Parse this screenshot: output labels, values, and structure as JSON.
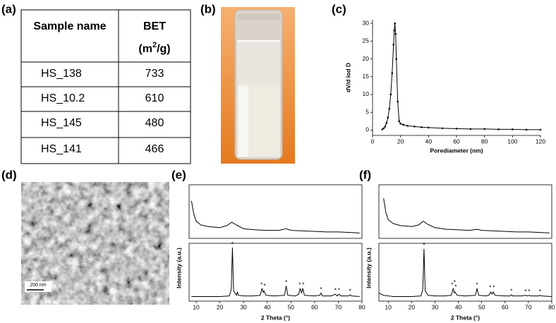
{
  "panel_labels": [
    "(a)",
    "(b)",
    "(c)",
    "(d)",
    "(e)",
    "(f)"
  ],
  "table": {
    "header": {
      "col1": "Sample name",
      "col2": {
        "name": "BET",
        "unit_open": "(m",
        "unit_sup": "2",
        "unit_close": "/g)"
      }
    },
    "rows": [
      [
        "HS_138",
        733
      ],
      [
        "HS_10.2",
        610
      ],
      [
        "HS_145",
        480
      ],
      [
        "HS_141",
        466
      ]
    ]
  },
  "image_d": {
    "scale_bar": "200 nm"
  },
  "chart_data": [
    {
      "type": "line",
      "markers": true,
      "color": "#000000",
      "x": [
        7,
        8,
        9,
        10,
        11,
        12,
        13,
        14,
        15,
        15.5,
        16,
        16.5,
        17,
        18,
        19,
        20,
        22,
        25,
        30,
        35,
        40,
        50,
        60,
        70,
        80,
        90,
        100,
        110,
        120
      ],
      "values": [
        0.2,
        0.5,
        1,
        2,
        3.5,
        6,
        10,
        16,
        24,
        28,
        30,
        27,
        20,
        8,
        2.5,
        1.8,
        1.5,
        1.2,
        1,
        0.8,
        0.7,
        0.5,
        0.4,
        0.3,
        0.3,
        0.2,
        0.2,
        0.1,
        0.1
      ],
      "xlim": [
        0,
        120
      ],
      "ylim": [
        -1.5,
        31
      ],
      "xticks": [
        0,
        20,
        40,
        60,
        80,
        100,
        120
      ],
      "yticks": [
        0,
        5,
        10,
        15,
        20,
        25,
        30
      ],
      "x_label": "Porediameter (nm)",
      "y_label": "dV/d lod D"
    },
    {
      "type": "line",
      "color": "#000000",
      "x": [
        8,
        9,
        10,
        12,
        15,
        20,
        23,
        25,
        27,
        30,
        35,
        40,
        45,
        48,
        50,
        55,
        60,
        65,
        70,
        75,
        79
      ],
      "values": [
        70,
        45,
        32,
        25,
        22,
        20,
        24,
        30,
        25,
        18,
        16,
        15,
        15,
        18,
        15,
        14,
        13,
        12,
        12,
        11,
        10
      ],
      "xlim": [
        7,
        80
      ],
      "ylim": [
        0,
        100
      ]
    },
    {
      "type": "line",
      "color": "#000000",
      "x": [
        8,
        12,
        16,
        20,
        24,
        24.8,
        25.3,
        25.8,
        27,
        27.4,
        27.8,
        30,
        34,
        37,
        37.8,
        38.3,
        38.6,
        39.5,
        43,
        47.3,
        48,
        48.7,
        52,
        53.3,
        53.9,
        54.5,
        55,
        55.7,
        60,
        62.2,
        62.7,
        63.3,
        67,
        68.8,
        69.5,
        70.3,
        71,
        74.4,
        75,
        75.6,
        79
      ],
      "values": [
        8,
        8,
        8,
        8,
        9,
        20,
        92,
        18,
        10,
        16,
        10,
        9,
        9,
        10,
        22,
        15,
        18,
        10,
        9,
        10,
        26,
        10,
        9,
        12,
        22,
        14,
        22,
        10,
        9,
        10,
        14,
        9,
        9,
        12,
        9,
        12,
        9,
        9,
        11,
        9,
        8
      ],
      "xlim": [
        7,
        80
      ],
      "ylim": [
        0,
        100
      ],
      "xticks": [
        10,
        20,
        30,
        40,
        50,
        60,
        70,
        80
      ],
      "x_label": "2 Theta (°)",
      "y_label": "Intensity (a.u.)",
      "annotations": [
        {
          "x": 25.3,
          "y": 98,
          "text": "*"
        },
        {
          "x": 37.6,
          "y": 28,
          "text": "*"
        },
        {
          "x": 38.9,
          "y": 26,
          "text": "*"
        },
        {
          "x": 48,
          "y": 32,
          "text": "*"
        },
        {
          "x": 53.7,
          "y": 28,
          "text": "*"
        },
        {
          "x": 55.2,
          "y": 28,
          "text": "*"
        },
        {
          "x": 62.7,
          "y": 20,
          "text": "*"
        },
        {
          "x": 68.8,
          "y": 18,
          "text": "*"
        },
        {
          "x": 70.3,
          "y": 18,
          "text": "*"
        },
        {
          "x": 75,
          "y": 17,
          "text": "*"
        }
      ]
    },
    {
      "type": "line",
      "color": "#000000",
      "x": [
        8,
        9,
        10,
        12,
        15,
        20,
        23,
        25,
        27,
        30,
        35,
        40,
        45,
        48,
        50,
        55,
        60,
        65,
        70,
        75,
        79
      ],
      "values": [
        75,
        48,
        35,
        28,
        24,
        22,
        25,
        32,
        26,
        20,
        17,
        16,
        15,
        17,
        15,
        14,
        13,
        12,
        12,
        11,
        10
      ],
      "xlim": [
        6,
        80
      ],
      "ylim": [
        0,
        100
      ]
    },
    {
      "type": "line",
      "color": "#000000",
      "x": [
        6,
        8,
        12,
        16,
        20,
        24,
        24.8,
        25.3,
        25.8,
        27,
        30,
        34,
        37,
        37.8,
        38.3,
        38.6,
        39.5,
        43,
        47.3,
        48,
        48.7,
        52,
        53.3,
        53.9,
        54.5,
        55,
        55.7,
        60,
        62.2,
        62.7,
        63.3,
        67,
        68.8,
        69.5,
        70.3,
        71,
        74.4,
        75,
        75.6,
        80
      ],
      "values": [
        14,
        10,
        8,
        8,
        8,
        9,
        20,
        90,
        18,
        10,
        9,
        9,
        10,
        22,
        14,
        16,
        10,
        9,
        10,
        22,
        10,
        9,
        11,
        16,
        12,
        16,
        10,
        9,
        9,
        11,
        9,
        9,
        10,
        9,
        10,
        9,
        9,
        10,
        9,
        8
      ],
      "xlim": [
        6,
        80
      ],
      "ylim": [
        0,
        100
      ],
      "xticks": [
        10,
        20,
        30,
        40,
        50,
        60,
        70,
        80
      ],
      "x_label": "2 Theta (°)",
      "y_label": "Intensity (a.u.)",
      "annotations": [
        {
          "x": 25.3,
          "y": 96,
          "text": "*"
        },
        {
          "x": 37.4,
          "y": 28,
          "text": "*"
        },
        {
          "x": 38.4,
          "y": 32,
          "text": "*"
        },
        {
          "x": 38.9,
          "y": 24,
          "text": "*"
        },
        {
          "x": 48,
          "y": 28,
          "text": "*"
        },
        {
          "x": 53.7,
          "y": 23,
          "text": "*"
        },
        {
          "x": 55.2,
          "y": 23,
          "text": "*"
        },
        {
          "x": 62.7,
          "y": 17,
          "text": "*"
        },
        {
          "x": 68.8,
          "y": 16,
          "text": "*"
        },
        {
          "x": 70.3,
          "y": 16,
          "text": "*"
        },
        {
          "x": 75,
          "y": 16,
          "text": "*"
        }
      ]
    }
  ]
}
